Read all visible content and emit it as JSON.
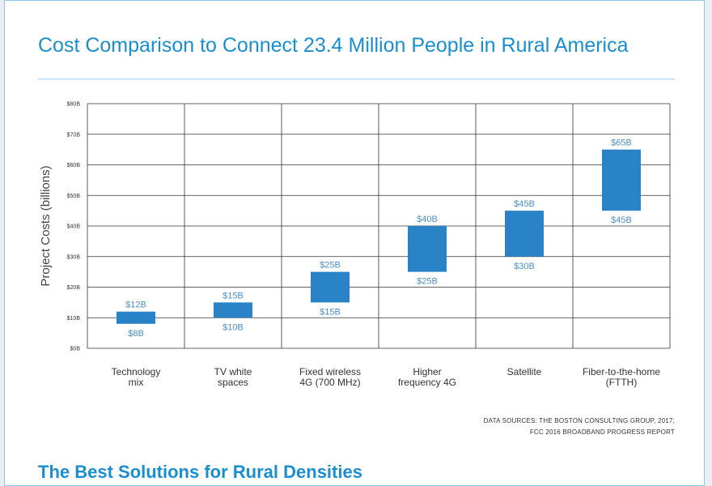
{
  "heading": "Cost Comparison to Connect 23.4 Million People in Rural America",
  "sources": {
    "line1": "DATA SOURCES: THE BOSTON CONSULTING GROUP, 2017;",
    "line2": "FCC 2016 BROADBAND PROGRESS REPORT"
  },
  "next_heading": "The Best Solutions for Rural Densities",
  "colors": {
    "accent": "#1a8fcf",
    "bar": "#2a83c6",
    "grid": "#333333",
    "label": "#4a8fc6"
  },
  "chart_data": {
    "type": "bar",
    "subtype": "floating-range",
    "title": "Cost Comparison to Connect 23.4 Million People in Rural America",
    "xlabel": "",
    "ylabel": "Project Costs (billions)",
    "ylim": [
      0,
      80
    ],
    "yticks": [
      0,
      10,
      20,
      30,
      40,
      50,
      60,
      70,
      80
    ],
    "ytick_labels": [
      "$0B",
      "$10B",
      "$20B",
      "$30B",
      "$40B",
      "$50B",
      "$60B",
      "$70B",
      "$80B"
    ],
    "grid": true,
    "categories": [
      [
        "Technology",
        "mix"
      ],
      [
        "TV white",
        "spaces"
      ],
      [
        "Fixed wireless",
        "4G (700 MHz)"
      ],
      [
        "Higher",
        "frequency 4G"
      ],
      [
        "Satellite"
      ],
      [
        "Fiber-to-the-home",
        "(FTTH)"
      ]
    ],
    "low": [
      8,
      10,
      15,
      25,
      30,
      45
    ],
    "high": [
      12,
      15,
      25,
      40,
      45,
      65
    ],
    "low_labels": [
      "$8B",
      "$10B",
      "$15B",
      "$25B",
      "$30B",
      "$45B"
    ],
    "high_labels": [
      "$12B",
      "$15B",
      "$25B",
      "$40B",
      "$45B",
      "$65B"
    ]
  }
}
